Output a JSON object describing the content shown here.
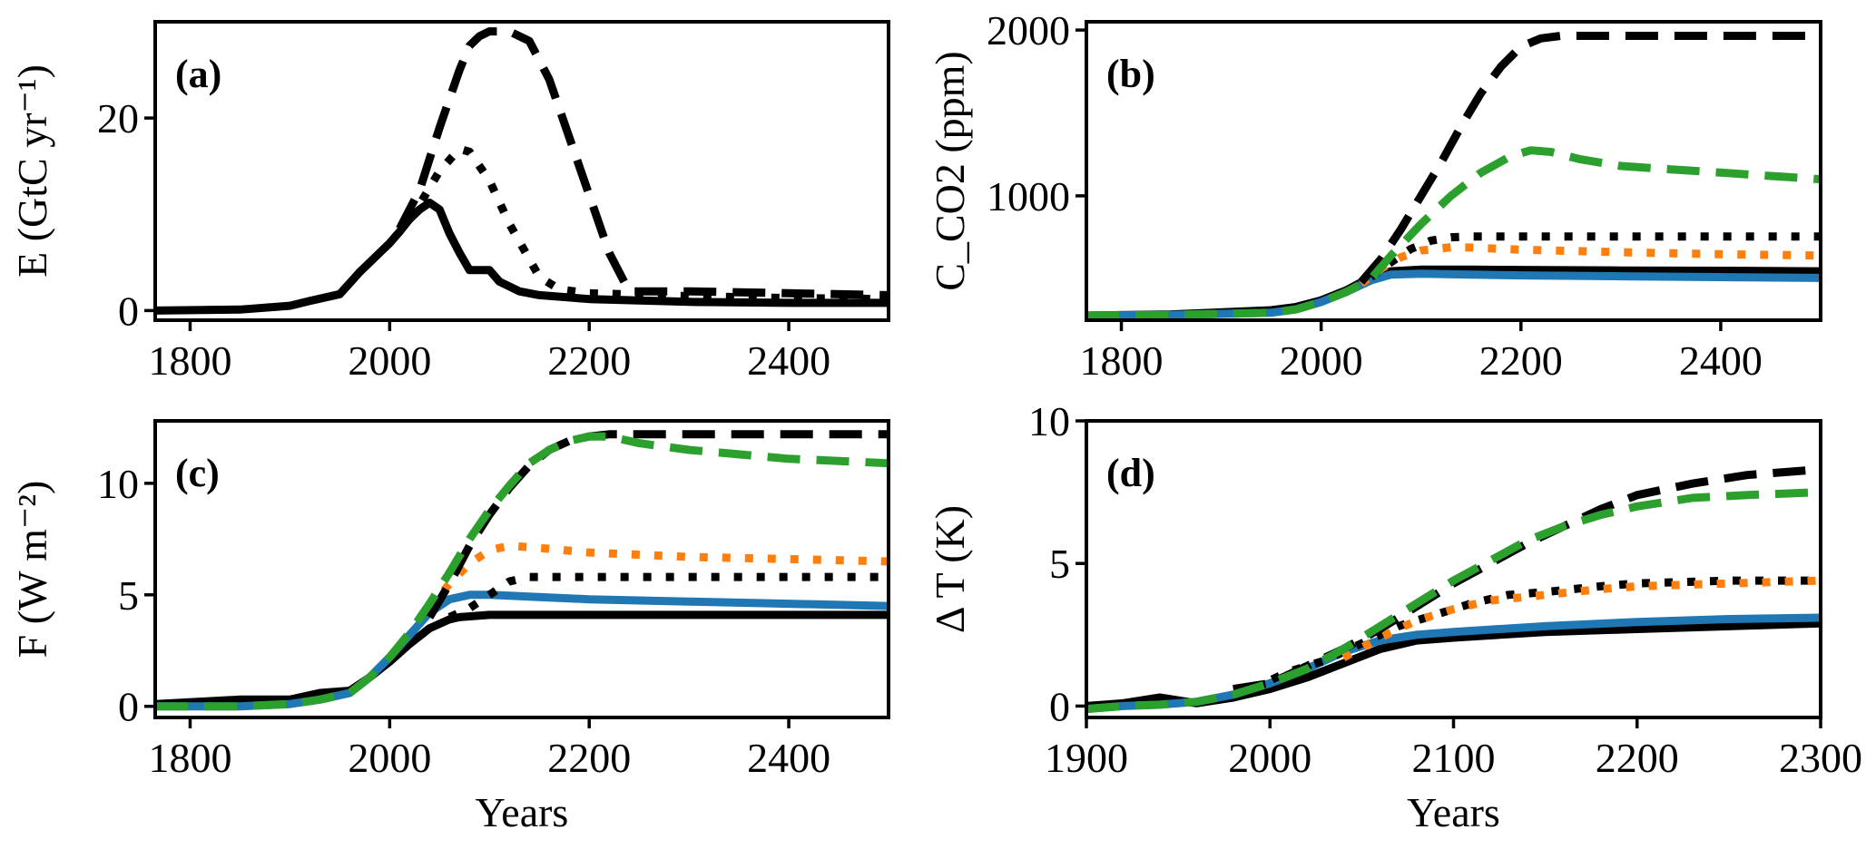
{
  "chart_data": [
    {
      "type": "line",
      "panel": "(a)",
      "ylabel": "E (GtC yr⁻¹)",
      "xlabel": "",
      "xlim": [
        1765,
        2500
      ],
      "ylim": [
        -1,
        30
      ],
      "xticks": [
        1800,
        2000,
        2200,
        2400
      ],
      "yticks": [
        0,
        20
      ],
      "grid": false,
      "series": [
        {
          "name": "emissions-solid",
          "color": "#000000",
          "style": "solid",
          "x": [
            1765,
            1850,
            1900,
            1920,
            1950,
            1970,
            1990,
            2000,
            2010,
            2020,
            2030,
            2040,
            2050,
            2060,
            2070,
            2080,
            2100,
            2110,
            2130,
            2150,
            2200,
            2300,
            2400,
            2500
          ],
          "y": [
            0,
            0.1,
            0.5,
            1.0,
            1.7,
            4.0,
            6.0,
            7.0,
            8.2,
            9.5,
            10.5,
            11.2,
            10.5,
            8.0,
            6.0,
            4.2,
            4.2,
            3.0,
            2.0,
            1.6,
            1.2,
            0.9,
            0.8,
            0.8
          ]
        },
        {
          "name": "emissions-dotted",
          "color": "#000000",
          "style": "dotted",
          "x": [
            2020,
            2030,
            2050,
            2070,
            2080,
            2100,
            2120,
            2150,
            2170,
            2200,
            2300,
            2400,
            2500
          ],
          "y": [
            9.5,
            11.0,
            14.5,
            16.8,
            16.5,
            13.5,
            9.0,
            3.5,
            2.2,
            1.8,
            1.5,
            1.3,
            1.2
          ]
        },
        {
          "name": "emissions-dashed",
          "color": "#000000",
          "style": "dashed",
          "x": [
            2010,
            2030,
            2050,
            2070,
            2080,
            2090,
            2100,
            2120,
            2140,
            2160,
            2180,
            2200,
            2220,
            2240,
            2250,
            2300,
            2400,
            2500
          ],
          "y": [
            8.5,
            12.5,
            19,
            25,
            27.5,
            28.5,
            29,
            29,
            28,
            24,
            18,
            12,
            6,
            2,
            2,
            2,
            1.8,
            1.6
          ]
        }
      ]
    },
    {
      "type": "line",
      "panel": "(b)",
      "ylabel": "C_CO2 (ppm)",
      "xlabel": "",
      "xlim": [
        1765,
        2500
      ],
      "ylim": [
        250,
        2050
      ],
      "xticks": [
        1800,
        2000,
        2200,
        2400
      ],
      "yticks": [
        1000,
        2000
      ],
      "grid": false,
      "series": [
        {
          "name": "co2-black-solid",
          "color": "#000000",
          "style": "solid",
          "x": [
            1765,
            1850,
            1950,
            1975,
            2000,
            2025,
            2050,
            2070,
            2100,
            2150,
            2200,
            2300,
            2400,
            2500
          ],
          "y": [
            278,
            285,
            310,
            330,
            370,
            430,
            510,
            545,
            555,
            555,
            553,
            550,
            548,
            545
          ]
        },
        {
          "name": "co2-blue-solid",
          "color": "#1f77b4",
          "style": "solid",
          "x": [
            1765,
            1850,
            1950,
            1975,
            2000,
            2025,
            2050,
            2070,
            2100,
            2150,
            2200,
            2300,
            2400,
            2500
          ],
          "y": [
            278,
            282,
            295,
            315,
            360,
            420,
            490,
            525,
            530,
            525,
            520,
            515,
            510,
            505
          ]
        },
        {
          "name": "co2-black-dotted",
          "color": "#000000",
          "style": "dotted",
          "x": [
            2050,
            2070,
            2090,
            2110,
            2130,
            2150,
            2200,
            2300,
            2400,
            2500
          ],
          "y": [
            510,
            600,
            680,
            730,
            750,
            755,
            755,
            755,
            755,
            755
          ]
        },
        {
          "name": "co2-orange-dotted",
          "color": "#ff7f0e",
          "style": "dotted",
          "x": [
            2040,
            2060,
            2080,
            2100,
            2130,
            2150,
            2200,
            2300,
            2400,
            2500
          ],
          "y": [
            470,
            560,
            630,
            670,
            690,
            688,
            675,
            660,
            648,
            640
          ]
        },
        {
          "name": "co2-black-dashed",
          "color": "#000000",
          "style": "dashed",
          "x": [
            2040,
            2060,
            2080,
            2100,
            2120,
            2140,
            2160,
            2180,
            2200,
            2220,
            2240,
            2260,
            2300,
            2400,
            2500
          ],
          "y": [
            480,
            620,
            800,
            1000,
            1200,
            1420,
            1620,
            1780,
            1900,
            1950,
            1965,
            1965,
            1965,
            1965,
            1965
          ]
        },
        {
          "name": "co2-green-dashed",
          "color": "#2ca02c",
          "style": "dashed",
          "x": [
            1765,
            1850,
            1950,
            1975,
            2000,
            2025,
            2050,
            2070,
            2100,
            2130,
            2160,
            2190,
            2210,
            2230,
            2260,
            2300,
            2350,
            2400,
            2450,
            2500
          ],
          "y": [
            278,
            282,
            295,
            315,
            360,
            420,
            500,
            640,
            830,
            1000,
            1140,
            1240,
            1275,
            1265,
            1220,
            1180,
            1160,
            1140,
            1120,
            1100
          ]
        }
      ]
    },
    {
      "type": "line",
      "panel": "(c)",
      "ylabel": "F (W m⁻²)",
      "xlabel": "Years",
      "xlim": [
        1765,
        2500
      ],
      "ylim": [
        -0.5,
        12.8
      ],
      "xticks": [
        1800,
        2000,
        2200,
        2400
      ],
      "yticks": [
        0,
        5,
        10
      ],
      "grid": false,
      "series": [
        {
          "name": "forcing-black-solid",
          "color": "#000000",
          "style": "solid",
          "x": [
            1765,
            1850,
            1900,
            1930,
            1960,
            1980,
            2000,
            2020,
            2040,
            2060,
            2070,
            2100,
            2200,
            2300,
            2400,
            2500
          ],
          "y": [
            0.1,
            0.3,
            0.3,
            0.6,
            0.7,
            1.3,
            2.0,
            2.8,
            3.5,
            3.9,
            4.0,
            4.1,
            4.1,
            4.1,
            4.1,
            4.1
          ]
        },
        {
          "name": "forcing-blue-solid",
          "color": "#1f77b4",
          "style": "solid",
          "x": [
            1765,
            1850,
            1900,
            1930,
            1960,
            1980,
            2000,
            2020,
            2040,
            2060,
            2080,
            2100,
            2150,
            2200,
            2300,
            2400,
            2500
          ],
          "y": [
            0,
            0,
            0.1,
            0.3,
            0.6,
            1.3,
            2.2,
            3.2,
            4.2,
            4.8,
            5.0,
            5.0,
            4.9,
            4.8,
            4.7,
            4.6,
            4.5
          ]
        },
        {
          "name": "forcing-black-dotted",
          "color": "#000000",
          "style": "dotted",
          "x": [
            2060,
            2080,
            2100,
            2120,
            2140,
            2200,
            2300,
            2400,
            2500
          ],
          "y": [
            4.0,
            4.4,
            5.0,
            5.6,
            5.8,
            5.8,
            5.8,
            5.8,
            5.8
          ]
        },
        {
          "name": "forcing-orange-dotted",
          "color": "#ff7f0e",
          "style": "dotted",
          "x": [
            2040,
            2060,
            2080,
            2100,
            2120,
            2150,
            2200,
            2300,
            2400,
            2500
          ],
          "y": [
            4.4,
            5.5,
            6.4,
            7.0,
            7.2,
            7.1,
            6.9,
            6.7,
            6.6,
            6.5
          ]
        },
        {
          "name": "forcing-black-dashed",
          "color": "#000000",
          "style": "dashed",
          "x": [
            2040,
            2060,
            2080,
            2100,
            2120,
            2140,
            2160,
            2180,
            2200,
            2220,
            2250,
            2300,
            2400,
            2500
          ],
          "y": [
            4.0,
            5.5,
            7.2,
            8.6,
            9.8,
            10.8,
            11.5,
            11.9,
            12.1,
            12.2,
            12.2,
            12.2,
            12.2,
            12.2
          ]
        },
        {
          "name": "forcing-green-dashed",
          "color": "#2ca02c",
          "style": "dashed",
          "x": [
            1765,
            1850,
            1900,
            1930,
            1960,
            1980,
            2000,
            2020,
            2040,
            2060,
            2080,
            2100,
            2120,
            2140,
            2160,
            2180,
            2200,
            2220,
            2250,
            2300,
            2400,
            2500
          ],
          "y": [
            0,
            0,
            0.1,
            0.3,
            0.6,
            1.3,
            2.2,
            3.3,
            4.6,
            6.0,
            7.5,
            8.8,
            9.9,
            10.9,
            11.5,
            11.9,
            12.1,
            12.1,
            11.8,
            11.5,
            11.1,
            10.9
          ]
        }
      ]
    },
    {
      "type": "line",
      "panel": "(d)",
      "ylabel": "Δ T (K)",
      "xlabel": "Years",
      "xlim": [
        1900,
        2300
      ],
      "ylim": [
        -0.4,
        10
      ],
      "xticks": [
        1900,
        2000,
        2100,
        2200,
        2300
      ],
      "yticks": [
        0,
        5,
        10
      ],
      "grid": false,
      "series": [
        {
          "name": "temp-black-solid",
          "color": "#000000",
          "style": "solid",
          "x": [
            1900,
            1920,
            1940,
            1960,
            1980,
            2000,
            2020,
            2040,
            2060,
            2080,
            2100,
            2150,
            2200,
            2250,
            2300
          ],
          "y": [
            0,
            0.1,
            0.3,
            0.1,
            0.3,
            0.6,
            1.0,
            1.5,
            2.0,
            2.3,
            2.4,
            2.6,
            2.7,
            2.8,
            2.9
          ]
        },
        {
          "name": "temp-blue-solid",
          "color": "#1f77b4",
          "style": "solid",
          "x": [
            1900,
            1920,
            1940,
            1960,
            1980,
            2000,
            2020,
            2040,
            2060,
            2080,
            2100,
            2150,
            2200,
            2250,
            2300
          ],
          "y": [
            -0.1,
            0,
            0.05,
            0.15,
            0.4,
            0.8,
            1.3,
            1.9,
            2.3,
            2.5,
            2.6,
            2.8,
            2.95,
            3.05,
            3.1
          ]
        },
        {
          "name": "temp-black-dotted",
          "color": "#000000",
          "style": "dotted",
          "x": [
            1990,
            2010,
            2030,
            2050,
            2070,
            2090,
            2110,
            2130,
            2150,
            2180,
            2200,
            2250,
            2300
          ],
          "y": [
            0.6,
            1.2,
            1.6,
            2.2,
            2.8,
            3.2,
            3.6,
            3.9,
            4.0,
            4.2,
            4.3,
            4.4,
            4.4
          ]
        },
        {
          "name": "temp-orange-dotted",
          "color": "#ff7f0e",
          "style": "dotted",
          "x": [
            2040,
            2060,
            2080,
            2100,
            2120,
            2150,
            2180,
            2200,
            2250,
            2300
          ],
          "y": [
            1.7,
            2.4,
            3.0,
            3.4,
            3.7,
            3.9,
            4.1,
            4.2,
            4.3,
            4.4
          ]
        },
        {
          "name": "temp-black-dashed",
          "color": "#000000",
          "style": "dashed",
          "x": [
            1980,
            2000,
            2020,
            2040,
            2060,
            2080,
            2100,
            2120,
            2140,
            2160,
            2180,
            2200,
            2230,
            2260,
            2300
          ],
          "y": [
            0.6,
            0.8,
            1.4,
            2.0,
            2.7,
            3.5,
            4.3,
            5.0,
            5.7,
            6.3,
            6.9,
            7.4,
            7.8,
            8.1,
            8.3
          ]
        },
        {
          "name": "temp-green-dashed",
          "color": "#2ca02c",
          "style": "dashed",
          "x": [
            1900,
            1920,
            1940,
            1960,
            1980,
            2000,
            2020,
            2040,
            2060,
            2080,
            2100,
            2120,
            2140,
            2160,
            2180,
            2200,
            2230,
            2260,
            2300
          ],
          "y": [
            -0.1,
            0,
            0.05,
            0.15,
            0.4,
            0.8,
            1.3,
            2.0,
            2.8,
            3.6,
            4.4,
            5.1,
            5.8,
            6.3,
            6.7,
            7.0,
            7.3,
            7.4,
            7.5
          ]
        }
      ]
    }
  ]
}
